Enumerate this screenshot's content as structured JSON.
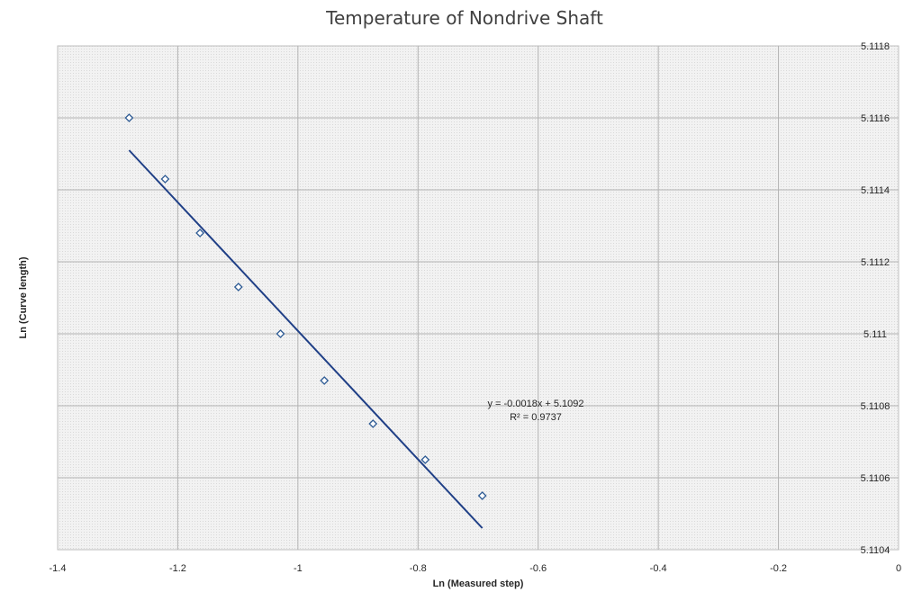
{
  "chart_data": {
    "type": "scatter",
    "title": "Temperature of Nondrive Shaft",
    "xlabel": "Ln (Measured step)",
    "ylabel": "Ln (Curve length)",
    "xlim": [
      -1.4,
      0
    ],
    "ylim": [
      5.1104,
      5.1118
    ],
    "x_ticks": [
      "-1.4",
      "-1.2",
      "-1",
      "-0.8",
      "-0.6",
      "-0.4",
      "-0.2",
      "0"
    ],
    "y_ticks": [
      "5.1104",
      "5.1106",
      "5.1108",
      "5.111",
      "5.1112",
      "5.1114",
      "5.1116",
      "5.1118"
    ],
    "y_axis_position": "right",
    "grid": true,
    "series": [
      {
        "marker": "diamond",
        "points": [
          {
            "x": -1.281,
            "y": 5.1116
          },
          {
            "x": -1.221,
            "y": 5.11143
          },
          {
            "x": -1.163,
            "y": 5.11128
          },
          {
            "x": -1.099,
            "y": 5.11113
          },
          {
            "x": -1.029,
            "y": 5.111
          },
          {
            "x": -0.956,
            "y": 5.11087
          },
          {
            "x": -0.875,
            "y": 5.11075
          },
          {
            "x": -0.788,
            "y": 5.11065
          },
          {
            "x": -0.693,
            "y": 5.11055
          }
        ]
      }
    ],
    "trendline": {
      "type": "linear",
      "x_range": [
        -1.281,
        -0.693
      ],
      "y_range": [
        5.11151,
        5.11046
      ],
      "equation": "y = -0.0018x + 5.1092",
      "r_squared": "R² = 0.9737"
    },
    "colors": {
      "marker": "#2e5b94",
      "trendline": "#1f3f86",
      "plot_background": "#f0f0f0",
      "grid": "#b3b3b3"
    }
  }
}
